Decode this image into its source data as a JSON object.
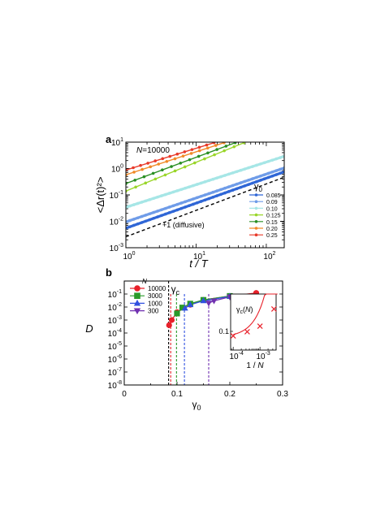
{
  "chart_data": [
    {
      "panel": "a",
      "type": "line",
      "annotation": "N=10000",
      "xlabel": "t / T",
      "ylabel": "<Δr(t)²>",
      "xscale": "log",
      "yscale": "log",
      "xlim": [
        1,
        180
      ],
      "ylim": [
        0.001,
        10
      ],
      "xticks": [
        "10^0",
        "10^1",
        "10^2"
      ],
      "yticks": [
        "10^-3",
        "10^-2",
        "10^-1",
        "10^0",
        "10^1"
      ],
      "legend_title": "γ0",
      "legend_position": "lower-right",
      "series": [
        {
          "name": "0.085",
          "color": "#2f66d6",
          "x": [
            1,
            180
          ],
          "y": [
            0.0055,
            0.75
          ],
          "dense": true
        },
        {
          "name": "0.09",
          "color": "#6f9ce8",
          "x": [
            1,
            180
          ],
          "y": [
            0.0095,
            1.05
          ],
          "dense": true
        },
        {
          "name": "0.10",
          "color": "#a6e6e6",
          "x": [
            1,
            180
          ],
          "y": [
            0.034,
            2.9
          ],
          "dense": true
        },
        {
          "name": "0.125",
          "color": "#9ad62a",
          "x": [
            1,
            48
          ],
          "y": [
            0.14,
            9.5
          ]
        },
        {
          "name": "0.15",
          "color": "#2a8f24",
          "x": [
            1,
            36
          ],
          "y": [
            0.27,
            9.5
          ]
        },
        {
          "name": "0.20",
          "color": "#f08a28",
          "x": [
            1,
            25
          ],
          "y": [
            0.58,
            9.5
          ]
        },
        {
          "name": "0.25",
          "color": "#e83a2a",
          "x": [
            1,
            18
          ],
          "y": [
            0.88,
            9.5
          ]
        }
      ],
      "reference_line": {
        "label": "+1 (diffusive)",
        "x": [
          1,
          180
        ],
        "y": [
          0.0026,
          0.47
        ]
      }
    },
    {
      "panel": "b",
      "type": "scatter",
      "xlabel": "γ0",
      "ylabel": "D",
      "xlim": [
        0,
        0.3
      ],
      "ylim": [
        1e-08,
        1
      ],
      "yscale": "log",
      "xticks": [
        "0",
        "0.1",
        "0.2",
        "0.3"
      ],
      "yticks": [
        "10^-8",
        "10^-7",
        "10^-6",
        "10^-5",
        "10^-4",
        "10^-3",
        "10^-2",
        "10^-1"
      ],
      "gamma_c_label": "γc",
      "gamma_c": 0.084,
      "legend_title": "N",
      "legend_position": "top-left",
      "series": [
        {
          "name": "10000",
          "color": "#e8202a",
          "marker": "circle",
          "x": [
            0.085,
            0.09,
            0.1,
            0.125,
            0.15,
            0.2,
            0.25
          ],
          "y": [
            0.0004,
            0.001,
            0.004,
            0.015,
            0.035,
            0.07,
            0.12
          ]
        },
        {
          "name": "3000",
          "color": "#2a9a2a",
          "marker": "square",
          "x": [
            0.1,
            0.11,
            0.125,
            0.15,
            0.2
          ],
          "y": [
            0.0032,
            0.009,
            0.018,
            0.035,
            0.07
          ]
        },
        {
          "name": "1000",
          "color": "#3050e0",
          "marker": "triangle-up",
          "x": [
            0.115,
            0.125,
            0.15,
            0.2
          ],
          "y": [
            0.008,
            0.015,
            0.03,
            0.065
          ]
        },
        {
          "name": "300",
          "color": "#7030b0",
          "marker": "triangle-down",
          "x": [
            0.16,
            0.17,
            0.2
          ],
          "y": [
            0.02,
            0.03,
            0.06
          ]
        }
      ],
      "dashed_lines": [
        {
          "x": 0.084,
          "color": "#000000"
        },
        {
          "x": 0.088,
          "color": "#e8202a"
        },
        {
          "x": 0.099,
          "color": "#2a9a2a"
        },
        {
          "x": 0.114,
          "color": "#3050e0"
        },
        {
          "x": 0.16,
          "color": "#7030b0"
        }
      ],
      "inset": {
        "xlabel": "1 / N",
        "ylabel": "γc(N)",
        "xscale": "log",
        "xlim": [
          8e-05,
          0.004
        ],
        "ylim": [
          0.05,
          0.2
        ],
        "xticks": [
          "10^-4",
          "10^-3"
        ],
        "yticks": [
          "0.1"
        ],
        "points": {
          "x": [
            0.0001,
            0.000333,
            0.001,
            0.00333
          ],
          "y": [
            0.088,
            0.099,
            0.114,
            0.16
          ]
        },
        "color": "#e8202a"
      }
    }
  ]
}
